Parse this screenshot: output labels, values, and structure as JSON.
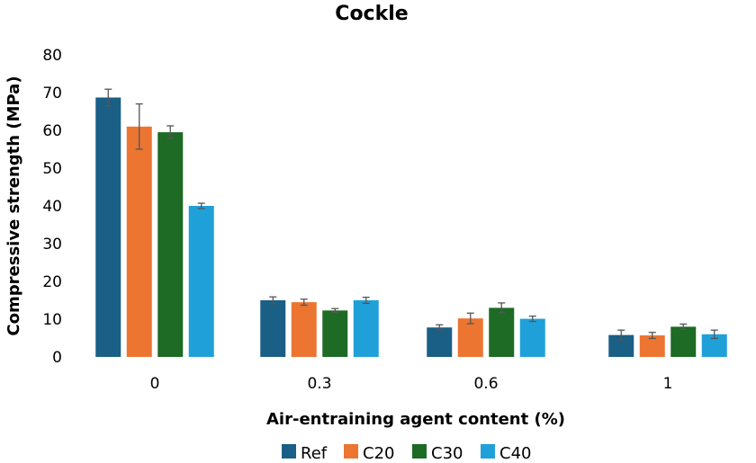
{
  "chart_data": {
    "type": "bar",
    "title": "Cockle",
    "xlabel": "Air-entraining agent content (%)",
    "ylabel": "Compressive strength (MPa)",
    "categories": [
      "0",
      "0.3",
      "0.6",
      "1"
    ],
    "ylim": [
      0,
      80
    ],
    "yticks": [
      0,
      10,
      20,
      30,
      40,
      50,
      60,
      70,
      80
    ],
    "grid": false,
    "legend_position": "bottom",
    "series": [
      {
        "name": "Ref",
        "color": "#1a5f85",
        "values": [
          68.7,
          15.0,
          7.8,
          5.8
        ],
        "errors": [
          2.2,
          0.9,
          0.7,
          1.3
        ]
      },
      {
        "name": "C20",
        "color": "#ec7532",
        "values": [
          61.0,
          14.5,
          10.2,
          5.7
        ],
        "errors": [
          6.0,
          0.8,
          1.4,
          0.8
        ]
      },
      {
        "name": "C30",
        "color": "#1d6b25",
        "values": [
          59.5,
          12.3,
          13.0,
          8.0
        ],
        "errors": [
          1.7,
          0.5,
          1.3,
          0.7
        ]
      },
      {
        "name": "C40",
        "color": "#20a0d8",
        "values": [
          40.0,
          15.0,
          10.1,
          6.0
        ],
        "errors": [
          0.7,
          0.8,
          0.7,
          1.1
        ]
      }
    ]
  }
}
